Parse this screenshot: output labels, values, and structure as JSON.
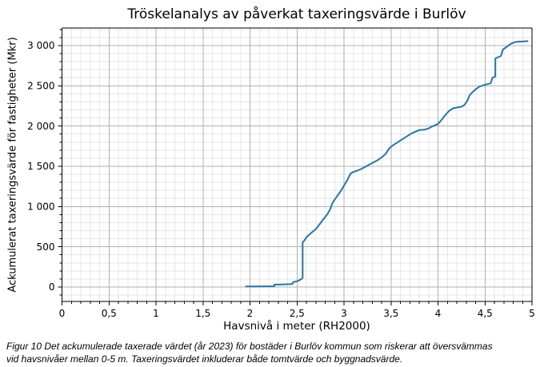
{
  "title": "Tröskelanalys av påverkat taxeringsvärde i Burlöv",
  "caption": {
    "lines": [
      "Figur 10 Det ackumulerade taxerade värdet (år 2023) för bostäder i Burlöv kommun som riskerar att översvämmas",
      "vid havsnivåer mellan 0-5 m. Taxeringsvärdet inkluderar både tomtvärde och byggnadsvärde."
    ]
  },
  "colors": {
    "line": "#1f77b4",
    "grid_major": "#b2b2b2",
    "grid_minor": "#e6e6e6",
    "spine": "#000000"
  },
  "chart_data": {
    "type": "line",
    "title": "Tröskelanalys av påverkat taxeringsvärde i Burlöv",
    "xlabel": "Havsnivå i meter (RH2000)",
    "ylabel": "Ackumulerat taxeringsvärde för fastigheter (Mkr)",
    "xlim": [
      0,
      5
    ],
    "ylim": [
      -179,
      3218
    ],
    "grid": "major+minor",
    "legend": "none",
    "x_minor_step": 0.1,
    "y_minor_step": 100,
    "x_ticks": [
      {
        "v": 0,
        "label": "0"
      },
      {
        "v": 0.5,
        "label": "0,5"
      },
      {
        "v": 1,
        "label": "1"
      },
      {
        "v": 1.5,
        "label": "1,5"
      },
      {
        "v": 2,
        "label": "2"
      },
      {
        "v": 2.5,
        "label": "2,5"
      },
      {
        "v": 3,
        "label": "3"
      },
      {
        "v": 3.5,
        "label": "3,5"
      },
      {
        "v": 4,
        "label": "4"
      },
      {
        "v": 4.5,
        "label": "4,5"
      },
      {
        "v": 5,
        "label": "5"
      }
    ],
    "y_ticks": [
      {
        "v": 0,
        "label": "0"
      },
      {
        "v": 500,
        "label": "500"
      },
      {
        "v": 1000,
        "label": "1 000"
      },
      {
        "v": 1500,
        "label": "1 500"
      },
      {
        "v": 2000,
        "label": "2 000"
      },
      {
        "v": 2500,
        "label": "2 500"
      },
      {
        "v": 3000,
        "label": "3 000"
      }
    ],
    "series": [
      {
        "name": "Ackumulerat taxeringsvärde (Mkr)",
        "points": [
          [
            1.95,
            8
          ],
          [
            2.05,
            8
          ],
          [
            2.15,
            9
          ],
          [
            2.26,
            10
          ],
          [
            2.26,
            30
          ],
          [
            2.34,
            33
          ],
          [
            2.42,
            36
          ],
          [
            2.45,
            38
          ],
          [
            2.46,
            60
          ],
          [
            2.5,
            72
          ],
          [
            2.52,
            82
          ],
          [
            2.55,
            100
          ],
          [
            2.56,
            115
          ],
          [
            2.56,
            555
          ],
          [
            2.58,
            580
          ],
          [
            2.6,
            620
          ],
          [
            2.64,
            660
          ],
          [
            2.67,
            690
          ],
          [
            2.7,
            720
          ],
          [
            2.74,
            780
          ],
          [
            2.78,
            840
          ],
          [
            2.82,
            900
          ],
          [
            2.85,
            960
          ],
          [
            2.88,
            1050
          ],
          [
            2.91,
            1100
          ],
          [
            2.94,
            1150
          ],
          [
            2.97,
            1200
          ],
          [
            3.0,
            1260
          ],
          [
            3.04,
            1340
          ],
          [
            3.07,
            1410
          ],
          [
            3.1,
            1430
          ],
          [
            3.14,
            1445
          ],
          [
            3.18,
            1465
          ],
          [
            3.22,
            1490
          ],
          [
            3.26,
            1515
          ],
          [
            3.3,
            1540
          ],
          [
            3.35,
            1570
          ],
          [
            3.4,
            1610
          ],
          [
            3.44,
            1650
          ],
          [
            3.48,
            1720
          ],
          [
            3.52,
            1760
          ],
          [
            3.56,
            1790
          ],
          [
            3.6,
            1820
          ],
          [
            3.64,
            1850
          ],
          [
            3.68,
            1880
          ],
          [
            3.72,
            1910
          ],
          [
            3.76,
            1930
          ],
          [
            3.8,
            1950
          ],
          [
            3.85,
            1955
          ],
          [
            3.89,
            1965
          ],
          [
            3.93,
            1990
          ],
          [
            3.97,
            2010
          ],
          [
            4.0,
            2025
          ],
          [
            4.04,
            2080
          ],
          [
            4.08,
            2140
          ],
          [
            4.12,
            2190
          ],
          [
            4.16,
            2220
          ],
          [
            4.2,
            2230
          ],
          [
            4.25,
            2240
          ],
          [
            4.28,
            2260
          ],
          [
            4.31,
            2310
          ],
          [
            4.34,
            2390
          ],
          [
            4.38,
            2435
          ],
          [
            4.41,
            2465
          ],
          [
            4.44,
            2490
          ],
          [
            4.48,
            2505
          ],
          [
            4.52,
            2520
          ],
          [
            4.56,
            2530
          ],
          [
            4.58,
            2600
          ],
          [
            4.61,
            2615
          ],
          [
            4.61,
            2840
          ],
          [
            4.64,
            2855
          ],
          [
            4.67,
            2870
          ],
          [
            4.69,
            2950
          ],
          [
            4.72,
            2975
          ],
          [
            4.75,
            3000
          ],
          [
            4.78,
            3025
          ],
          [
            4.81,
            3040
          ],
          [
            4.85,
            3048
          ],
          [
            4.9,
            3050
          ],
          [
            4.96,
            3055
          ]
        ]
      }
    ]
  }
}
